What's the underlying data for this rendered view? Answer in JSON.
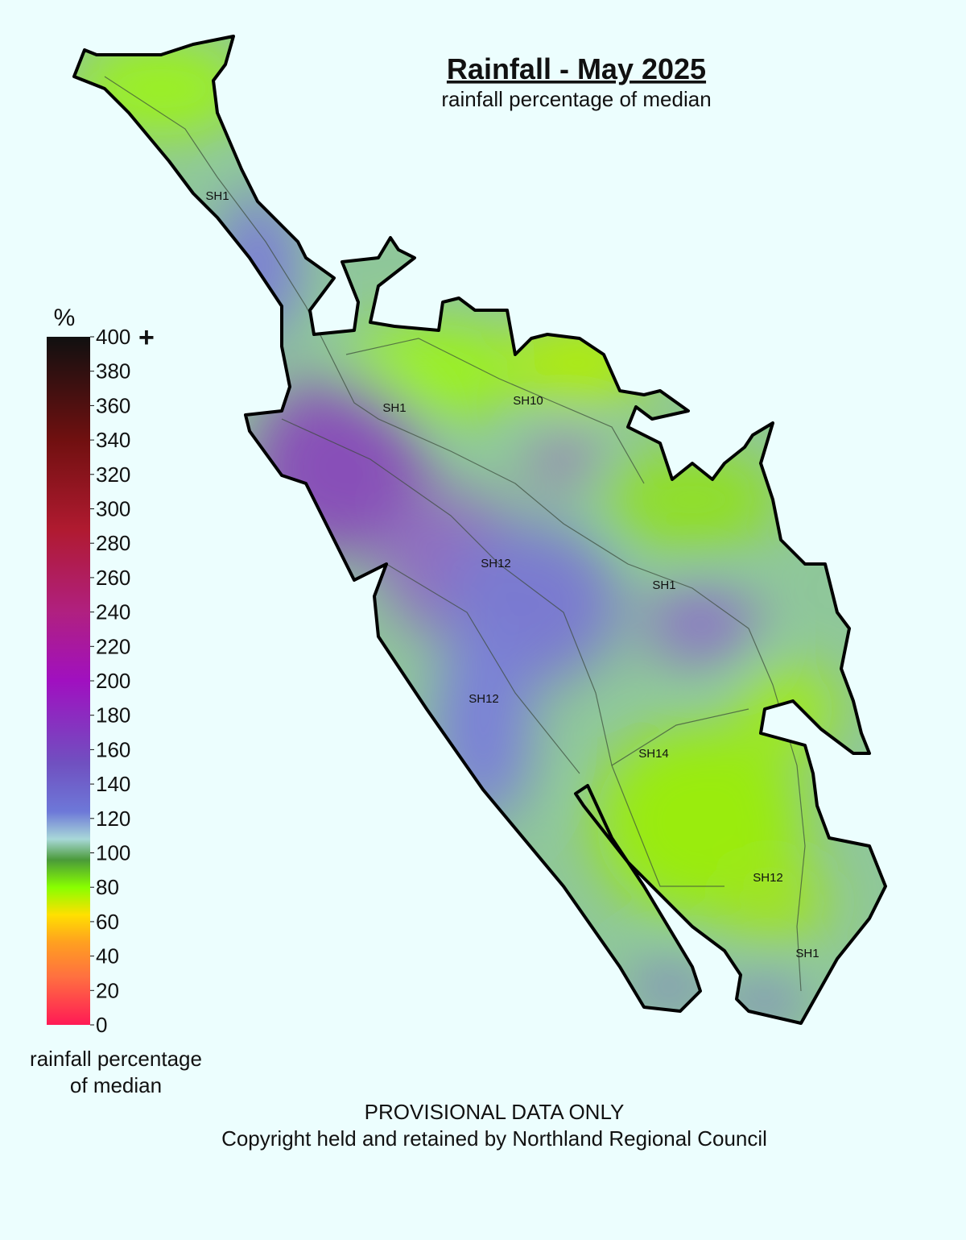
{
  "header": {
    "title": "Rainfall - May 2025",
    "subtitle": "rainfall percentage of median"
  },
  "legend": {
    "unit": "%",
    "ticks": [
      0,
      20,
      40,
      60,
      80,
      100,
      120,
      140,
      160,
      180,
      200,
      220,
      240,
      260,
      280,
      300,
      320,
      340,
      360,
      380,
      400
    ],
    "top_suffix": "+",
    "caption": [
      "rainfall percentage",
      "of median"
    ]
  },
  "map": {
    "road_labels": [
      "SH1",
      "SH1",
      "SH10",
      "SH12",
      "SH1",
      "SH12",
      "SH14",
      "SH12",
      "SH1"
    ]
  },
  "footer": {
    "notice": "PROVISIONAL DATA ONLY",
    "copyright": "Copyright held and retained by Northland Regional Council"
  }
}
